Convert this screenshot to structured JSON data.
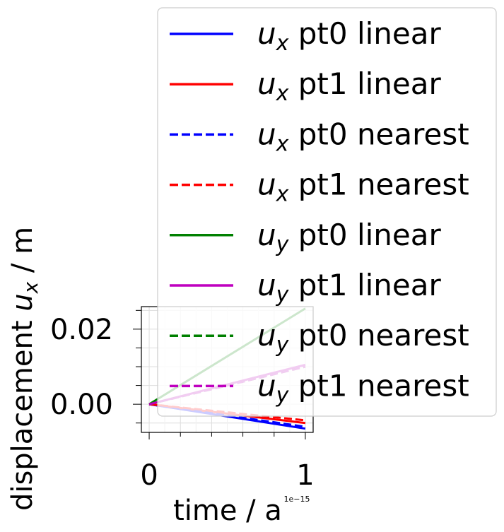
{
  "chart_data": {
    "type": "line",
    "xlabel": "time / a",
    "ylabel_prefix": "displacement ",
    "ylabel_var": "u",
    "ylabel_sub": "x",
    "ylabel_suffix": " / m",
    "x_offset_label": "1e−15",
    "xlim": [
      -0.05,
      1.05
    ],
    "ylim": [
      -0.0075,
      0.026
    ],
    "x_ticks": [
      0,
      1
    ],
    "x_tick_labels": [
      "0",
      "1"
    ],
    "y_ticks": [
      0.0,
      0.02
    ],
    "y_tick_labels": [
      "0.00",
      "0.02"
    ],
    "grid": true,
    "legend_position": "top-right",
    "series": [
      {
        "var": "u",
        "sub": "x",
        "text": " pt0 linear",
        "color": "#0000ff",
        "dash": "solid",
        "x": [
          0,
          1
        ],
        "y": [
          0,
          -0.0065
        ]
      },
      {
        "var": "u",
        "sub": "x",
        "text": " pt1 linear",
        "color": "#ff0000",
        "dash": "solid",
        "x": [
          0,
          1
        ],
        "y": [
          0,
          -0.005
        ]
      },
      {
        "var": "u",
        "sub": "x",
        "text": " pt0 nearest",
        "color": "#0000ff",
        "dash": "dashed",
        "x": [
          0,
          1
        ],
        "y": [
          0,
          -0.006
        ]
      },
      {
        "var": "u",
        "sub": "x",
        "text": " pt1 nearest",
        "color": "#ff0000",
        "dash": "dashed",
        "x": [
          0,
          1
        ],
        "y": [
          0,
          -0.0043
        ]
      },
      {
        "var": "u",
        "sub": "y",
        "text": " pt0 linear",
        "color": "#008000",
        "dash": "solid",
        "x": [
          0,
          1
        ],
        "y": [
          0,
          0.0255
        ]
      },
      {
        "var": "u",
        "sub": "y",
        "text": " pt1 linear",
        "color": "#bf00bf",
        "dash": "solid",
        "x": [
          0,
          1
        ],
        "y": [
          0,
          0.0105
        ]
      },
      {
        "var": "u",
        "sub": "y",
        "text": " pt0 nearest",
        "color": "#008000",
        "dash": "dashed",
        "x": [
          0,
          1
        ],
        "y": [
          0,
          0.01
        ]
      },
      {
        "var": "u",
        "sub": "y",
        "text": " pt1 nearest",
        "color": "#bf00bf",
        "dash": "dashed",
        "x": [
          0,
          1
        ],
        "y": [
          0,
          0.01
        ]
      }
    ]
  }
}
